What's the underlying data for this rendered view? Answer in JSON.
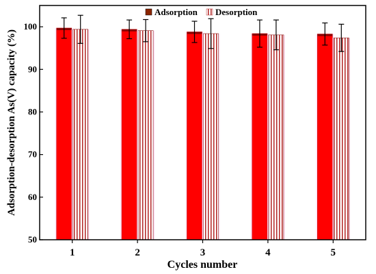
{
  "chart_data": {
    "type": "bar",
    "title": "",
    "xlabel": "Cycles number",
    "ylabel": "Adsorption-desorption As(V) capacity  (%)",
    "categories": [
      "1",
      "2",
      "3",
      "4",
      "5"
    ],
    "ylim": [
      50,
      105
    ],
    "yticks": [
      50,
      60,
      70,
      80,
      90,
      100
    ],
    "grid": false,
    "legend_position": "top-center",
    "series": [
      {
        "name": "Adsorption",
        "values": [
          99.7,
          99.4,
          98.8,
          98.4,
          98.3
        ],
        "errors": [
          2.4,
          2.2,
          2.5,
          3.2,
          2.6
        ],
        "color": "#ff0000",
        "pattern": "solid"
      },
      {
        "name": "Desorption",
        "values": [
          99.4,
          99.1,
          98.4,
          98.1,
          97.4
        ],
        "errors": [
          3.3,
          2.6,
          3.5,
          3.5,
          3.2
        ],
        "color": "#b22222",
        "pattern": "vertical-stripes"
      }
    ]
  }
}
